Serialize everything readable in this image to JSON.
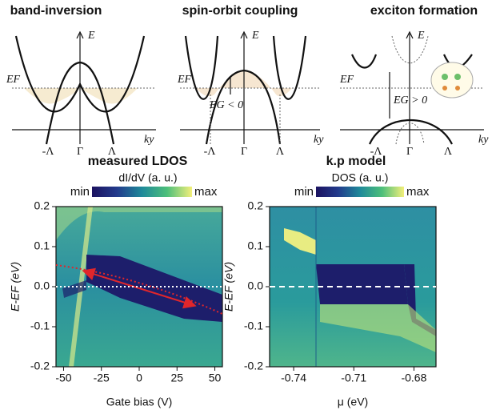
{
  "diagrams": [
    {
      "title": "band-inversion",
      "energy_axis": "E",
      "fermi": "EF",
      "momentum_axis": "ky",
      "points": [
        "-Λ",
        "Γ",
        "Λ"
      ]
    },
    {
      "title": "spin-orbit coupling",
      "energy_axis": "E",
      "fermi": "EF",
      "momentum_axis": "ky",
      "gap": "EG < 0",
      "points": [
        "-Λ",
        "Γ",
        "Λ"
      ]
    },
    {
      "title": "exciton formation",
      "energy_axis": "E",
      "fermi": "EF",
      "momentum_axis": "ky",
      "gap": "EG > 0",
      "points": [
        "-Λ",
        "Γ",
        "Λ"
      ]
    }
  ],
  "chart_data": [
    {
      "type": "heatmap",
      "title": "measured LDOS",
      "colorbar_label": "dI/dV (a. u.)",
      "colorbar_min": "min",
      "colorbar_max": "max",
      "x_label": "Gate bias (V)",
      "y_label": "E-EF (eV)",
      "xlim": [
        -55,
        55
      ],
      "xticks": [
        -50,
        -25,
        0,
        25,
        50
      ],
      "ylim": [
        -0.2,
        0.2
      ],
      "yticks": [
        0.2,
        0.1,
        {
          "value": 0,
          "label": "0.0"
        },
        -0.1,
        -0.2
      ]
    },
    {
      "type": "heatmap",
      "title": "k.p model",
      "colorbar_label": "DOS (a. u.)",
      "colorbar_min": "min",
      "colorbar_max": "max",
      "x_label": "μ (eV)",
      "y_label": "E-EF (eV)",
      "xlim": [
        -0.752,
        -0.669
      ],
      "xticks": [
        -0.74,
        -0.71,
        -0.68
      ],
      "ylim": [
        -0.2,
        0.2
      ],
      "yticks": [
        0.2,
        0.1,
        {
          "value": 0,
          "label": "0.0"
        },
        -0.1,
        -0.2
      ]
    }
  ]
}
